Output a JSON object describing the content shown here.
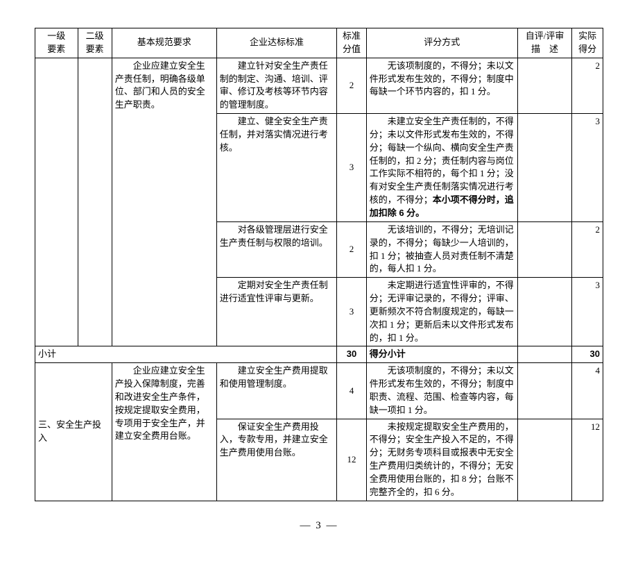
{
  "headers": {
    "c1": "一级\n要素",
    "c2": "二级\n要素",
    "c3": "基本规范要求",
    "c4": "企业达标标准",
    "c5": "标准\n分值",
    "c6": "评分方式",
    "c7": "自评/评审\n描　述",
    "c8": "实际\n得分"
  },
  "rows": [
    {
      "c3": "　　企业应建立安全生产责任制，明确各级单位、部门和人员的安全生产职责。",
      "c4": "　　建立针对安全生产责任制的制定、沟通、培训、评审、修订及考核等环节内容的管理制度。",
      "c5": "2",
      "c6": "　　无该项制度的，不得分；未以文件形式发布生效的，不得分；制度中每缺一个环节内容的，扣 1 分。",
      "c8": "2"
    },
    {
      "c4": "　　建立、健全安全生产责任制，并对落实情况进行考核。",
      "c5": "3",
      "c6_pre": "　　未建立安全生产责任制的，不得分；未以文件形式发布生效的，不得分；每缺一个纵向、横向安全生产责任制的，扣 2 分；责任制内容与岗位工作实际不相符的，每个扣 1 分；没有对安全生产责任制落实情况进行考核的，不得分；",
      "c6_bold": "本小项不得分时，追加扣除 6 分。",
      "c8": "3"
    },
    {
      "c4": "　　对各级管理层进行安全生产责任制与权限的培训。",
      "c5": "2",
      "c6": "　　无该培训的，不得分；无培训记录的，不得分；每缺少一人培训的，扣 1 分；被抽查人员对责任制不清楚的，每人扣 1 分。",
      "c8": "2"
    },
    {
      "c4": "　　定期对安全生产责任制进行适宜性评审与更新。",
      "c5": "3",
      "c6": "　　未定期进行适宜性评审的，不得分；无评审记录的，不得分；评审、更新频次不符合制度规定的，每缺一次扣 1 分；更新后未以文件形式发布的，扣 1 分。",
      "c8": "3"
    }
  ],
  "subtotal": {
    "label": "小计",
    "std": "30",
    "scorelabel": "得分小计",
    "actual": "30"
  },
  "section3": {
    "l1": "三、安全生产投入",
    "req": "　　企业应建立安全生产投入保障制度，完善和改进安全生产条件，按规定提取安全费用，专项用于安全生产，并建立安全费用台账。",
    "rows": [
      {
        "c4": "　　建立安全生产费用提取和使用管理制度。",
        "c5": "4",
        "c6": "　　无该项制度的，不得分；未以文件形式发布生效的，不得分；制度中职责、流程、范围、检查等内容，每缺一项扣 1 分。",
        "c8": "4"
      },
      {
        "c4": "　　保证安全生产费用投入，专款专用，并建立安全生产费用使用台账。",
        "c5": "12",
        "c6": "　　未按规定提取安全生产费用的，不得分；安全生产投入不足的，不得分；无财务专项科目或报表中无安全生产费用归类统计的，不得分；无安全费用使用台账的，扣 8 分；台账不完整齐全的，扣 6 分。",
        "c8": "12"
      }
    ]
  },
  "pagenum": "— 3 —"
}
